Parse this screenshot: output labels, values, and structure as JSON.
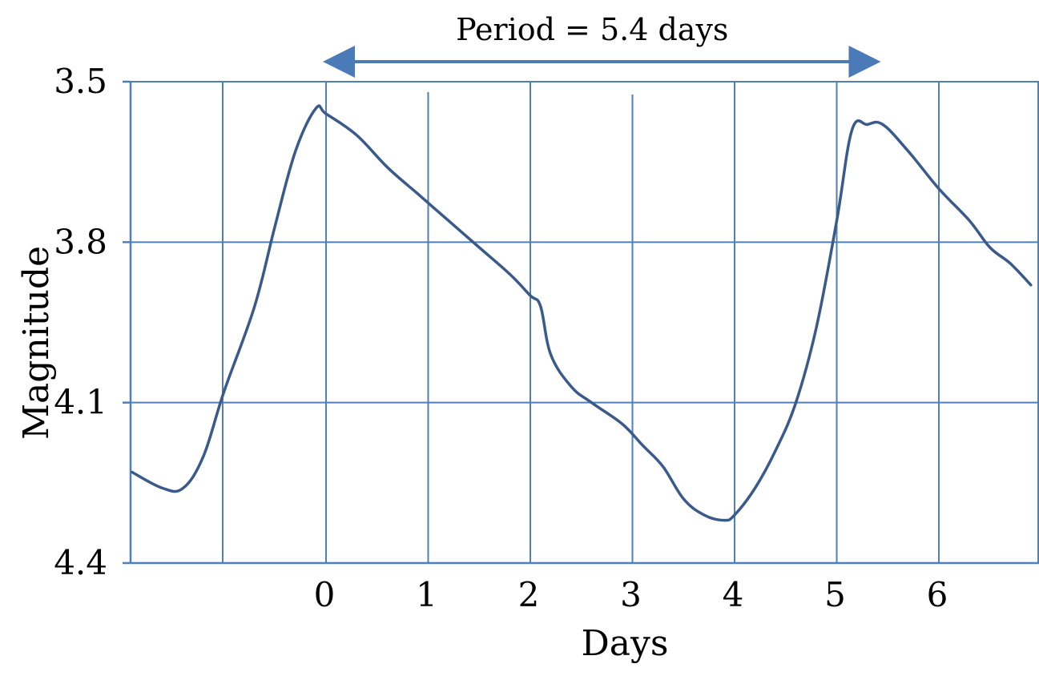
{
  "chart_data": {
    "type": "line",
    "title": "",
    "xlabel": "Days",
    "ylabel": "Magnitude",
    "y_inverted": true,
    "ylim": [
      4.4,
      3.5
    ],
    "xlim": [
      -1.9,
      6.9
    ],
    "y_ticks": [
      "3.5",
      "3.8",
      "4.1",
      "4.4"
    ],
    "y_tick_values": [
      3.5,
      3.8,
      4.1,
      4.4
    ],
    "x_ticks": [
      "0",
      "1",
      "2",
      "3",
      "4",
      "5",
      "6"
    ],
    "x_tick_values": [
      0,
      1,
      2,
      3,
      4,
      5,
      6
    ],
    "grid": true,
    "line_color": "#3a5a8c",
    "grid_color": "#4f7fb8",
    "annotation": {
      "text": "Period = 5.4 days",
      "from_x": 0,
      "to_x": 5.4,
      "color": "#4a7ab8"
    },
    "series": [
      {
        "x": [
          -1.9,
          -1.6,
          -1.4,
          -1.2,
          -1.0,
          -0.7,
          -0.5,
          -0.3,
          -0.1,
          0.0,
          0.3,
          0.6,
          0.9,
          1.2,
          1.5,
          1.8,
          2.0,
          2.1,
          2.2,
          2.4,
          2.6,
          2.9,
          3.1,
          3.3,
          3.5,
          3.7,
          3.9,
          4.0,
          4.2,
          4.4,
          4.6,
          4.8,
          5.0,
          5.15,
          5.3,
          5.45,
          5.7,
          6.0,
          6.3,
          6.5,
          6.7,
          6.9
        ],
        "y": [
          4.23,
          4.26,
          4.26,
          4.2,
          4.08,
          3.92,
          3.77,
          3.63,
          3.55,
          3.56,
          3.6,
          3.66,
          3.71,
          3.76,
          3.81,
          3.86,
          3.9,
          3.92,
          4.01,
          4.07,
          4.1,
          4.14,
          4.18,
          4.22,
          4.28,
          4.31,
          4.32,
          4.31,
          4.26,
          4.19,
          4.1,
          3.96,
          3.76,
          3.59,
          3.58,
          3.58,
          3.63,
          3.7,
          3.76,
          3.81,
          3.84,
          3.88
        ]
      }
    ]
  }
}
